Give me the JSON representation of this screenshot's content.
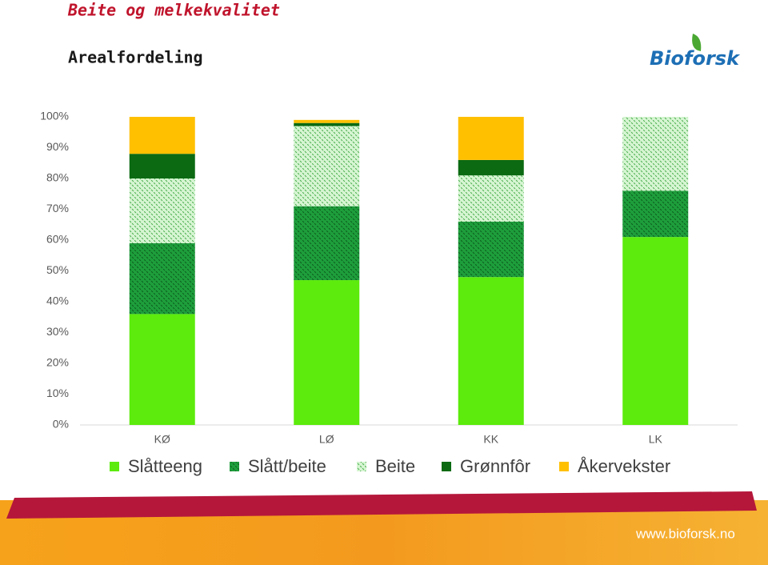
{
  "header": {
    "title": "Beite og melkekvalitet",
    "subtitle": "Arealfordeling",
    "logo": "Bioforsk",
    "footer": "www.bioforsk.no"
  },
  "chart_data": {
    "type": "stacked-bar",
    "categories": [
      "KØ",
      "LØ",
      "KK",
      "LK"
    ],
    "series": [
      {
        "name": "Slåtteeng",
        "color": "#5ceb0c",
        "values": [
          36,
          47,
          48,
          61
        ]
      },
      {
        "name": "Slått/beite",
        "color": "#1e9e3c",
        "pattern": "dots",
        "values": [
          23,
          24,
          18,
          15
        ]
      },
      {
        "name": "Beite",
        "color": "#d6f5d2",
        "pattern": "dots",
        "values": [
          21,
          26,
          15,
          24
        ]
      },
      {
        "name": "Grønnfôr",
        "color": "#0b6a12",
        "values": [
          8,
          1,
          5,
          0
        ]
      },
      {
        "name": "Åkervekster",
        "color": "#ffc000",
        "values": [
          12,
          1,
          14,
          0
        ]
      }
    ],
    "ylim": [
      0,
      100
    ],
    "yticks": [
      {
        "value": 0,
        "label": "0%"
      },
      {
        "value": 10,
        "label": "10%"
      },
      {
        "value": 20,
        "label": "20%"
      },
      {
        "value": 30,
        "label": "30%"
      },
      {
        "value": 40,
        "label": "40%"
      },
      {
        "value": 50,
        "label": "50%"
      },
      {
        "value": 60,
        "label": "60%"
      },
      {
        "value": 70,
        "label": "70%"
      },
      {
        "value": 80,
        "label": "80%"
      },
      {
        "value": 90,
        "label": "90%"
      },
      {
        "value": 100,
        "label": "100%"
      }
    ],
    "legend": "bottom"
  }
}
